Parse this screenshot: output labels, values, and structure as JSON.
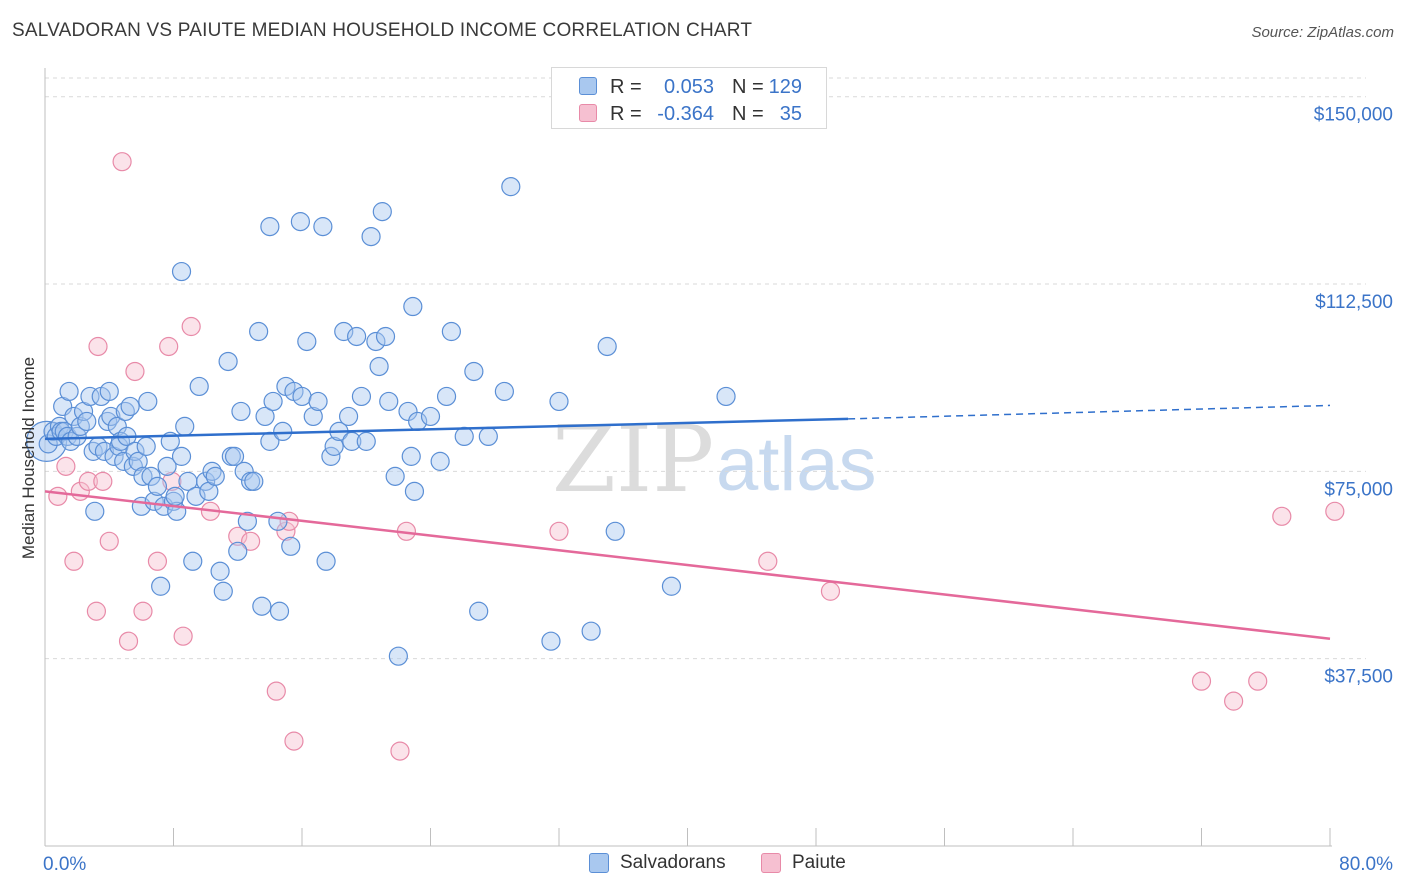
{
  "title": "SALVADORAN VS PAIUTE MEDIAN HOUSEHOLD INCOME CORRELATION CHART",
  "source": "Source: ZipAtlas.com",
  "watermark": {
    "zip": "ZIP",
    "atlas": "atlas"
  },
  "colors": {
    "blue_fill": "#a9c8ef",
    "blue_stroke": "#5b8fd6",
    "blue_line": "#2f6fcc",
    "pink_fill": "#f6c0d1",
    "pink_stroke": "#e88aa8",
    "pink_line": "#e4699a",
    "tick_text": "#3b74c8",
    "grid": "#d9d9d9"
  },
  "legend_top": {
    "rows": [
      {
        "r_label": "R =",
        "r_value": "0.053",
        "n_label": "N =",
        "n_value": "129"
      },
      {
        "r_label": "R =",
        "r_value": "-0.364",
        "n_label": "N =",
        "n_value": "35"
      }
    ]
  },
  "legend_bottom": {
    "items": [
      "Salvadorans",
      "Paiute"
    ]
  },
  "chart_data": {
    "type": "scatter",
    "title": "SALVADORAN VS PAIUTE MEDIAN HOUSEHOLD INCOME CORRELATION CHART",
    "xlabel": "",
    "ylabel": "Median Household Income",
    "xlim": [
      0,
      80
    ],
    "ylim": [
      0,
      153750
    ],
    "x_tick_labels": [
      "0.0%",
      "80.0%"
    ],
    "y_ticks": [
      37500,
      75000,
      112500,
      150000
    ],
    "y_tick_labels": [
      "$37,500",
      "$75,000",
      "$112,500",
      "$150,000"
    ],
    "grid": true,
    "legend_position": "top-center",
    "series": [
      {
        "name": "Salvadorans",
        "r": 0.053,
        "n": 129,
        "trend": {
          "x0": 0,
          "y0": 81500,
          "x1": 50,
          "y1": 85500,
          "x_dashed_end": 80,
          "y_dashed_end": 88200
        },
        "points": [
          [
            0.2,
            80.5
          ],
          [
            0.5,
            83
          ],
          [
            0.7,
            82
          ],
          [
            0.9,
            84
          ],
          [
            1.0,
            83
          ],
          [
            1.1,
            88
          ],
          [
            1.2,
            83
          ],
          [
            1.4,
            82
          ],
          [
            1.5,
            91
          ],
          [
            1.6,
            81
          ],
          [
            1.8,
            86
          ],
          [
            2.0,
            82
          ],
          [
            2.2,
            84
          ],
          [
            2.4,
            87
          ],
          [
            2.6,
            85
          ],
          [
            2.8,
            90
          ],
          [
            3.0,
            79
          ],
          [
            3.1,
            67
          ],
          [
            3.3,
            80
          ],
          [
            3.5,
            90
          ],
          [
            3.7,
            79
          ],
          [
            3.9,
            85
          ],
          [
            4.0,
            91
          ],
          [
            4.1,
            86
          ],
          [
            4.3,
            78
          ],
          [
            4.5,
            84
          ],
          [
            4.6,
            80
          ],
          [
            4.7,
            81
          ],
          [
            4.9,
            77
          ],
          [
            5.0,
            87
          ],
          [
            5.1,
            82
          ],
          [
            5.3,
            88
          ],
          [
            5.5,
            76
          ],
          [
            5.6,
            79
          ],
          [
            5.8,
            77
          ],
          [
            6.0,
            68
          ],
          [
            6.1,
            74
          ],
          [
            6.3,
            80
          ],
          [
            6.4,
            89
          ],
          [
            6.6,
            74
          ],
          [
            6.8,
            69
          ],
          [
            7.0,
            72
          ],
          [
            7.2,
            52
          ],
          [
            7.4,
            68
          ],
          [
            7.6,
            76
          ],
          [
            7.8,
            81
          ],
          [
            8.0,
            69
          ],
          [
            8.2,
            67
          ],
          [
            8.5,
            78
          ],
          [
            8.7,
            84
          ],
          [
            8.9,
            73
          ],
          [
            9.2,
            57
          ],
          [
            9.4,
            70
          ],
          [
            9.6,
            92
          ],
          [
            10.0,
            73
          ],
          [
            10.2,
            71
          ],
          [
            10.4,
            75
          ],
          [
            10.6,
            74
          ],
          [
            10.9,
            55
          ],
          [
            11.1,
            51
          ],
          [
            11.4,
            97
          ],
          [
            11.6,
            78
          ],
          [
            11.8,
            78
          ],
          [
            12.0,
            59
          ],
          [
            12.2,
            87
          ],
          [
            12.4,
            75
          ],
          [
            12.6,
            65
          ],
          [
            12.8,
            73
          ],
          [
            13.0,
            73
          ],
          [
            13.3,
            103
          ],
          [
            13.5,
            48
          ],
          [
            13.7,
            86
          ],
          [
            14.0,
            81
          ],
          [
            14.2,
            89
          ],
          [
            14.5,
            65
          ],
          [
            14.6,
            47
          ],
          [
            14.8,
            83
          ],
          [
            15.0,
            92
          ],
          [
            15.3,
            60
          ],
          [
            15.5,
            91
          ],
          [
            15.9,
            125
          ],
          [
            16.0,
            90
          ],
          [
            16.3,
            101
          ],
          [
            16.7,
            86
          ],
          [
            17.0,
            89
          ],
          [
            17.3,
            124
          ],
          [
            17.5,
            57
          ],
          [
            17.8,
            78
          ],
          [
            18.0,
            80
          ],
          [
            18.3,
            83
          ],
          [
            18.6,
            103
          ],
          [
            18.9,
            86
          ],
          [
            19.1,
            81
          ],
          [
            19.4,
            102
          ],
          [
            19.7,
            90
          ],
          [
            20.0,
            81
          ],
          [
            20.3,
            122
          ],
          [
            20.6,
            101
          ],
          [
            20.8,
            96
          ],
          [
            21.0,
            127
          ],
          [
            21.2,
            102
          ],
          [
            21.4,
            89
          ],
          [
            21.8,
            74
          ],
          [
            22.0,
            38
          ],
          [
            22.6,
            87
          ],
          [
            22.8,
            78
          ],
          [
            22.9,
            108
          ],
          [
            23.0,
            71
          ],
          [
            23.2,
            85
          ],
          [
            24.0,
            86
          ],
          [
            24.6,
            77
          ],
          [
            25.0,
            90
          ],
          [
            25.3,
            103
          ],
          [
            26.1,
            82
          ],
          [
            26.7,
            95
          ],
          [
            27.0,
            47
          ],
          [
            27.6,
            82
          ],
          [
            28.6,
            91
          ],
          [
            29.0,
            132
          ],
          [
            31.5,
            41
          ],
          [
            32.0,
            89
          ],
          [
            34.0,
            43
          ],
          [
            35.0,
            100
          ],
          [
            35.5,
            63
          ],
          [
            39.0,
            52
          ],
          [
            42.4,
            90
          ],
          [
            8.5,
            115
          ],
          [
            14.0,
            124
          ],
          [
            8.1,
            70
          ]
        ]
      },
      {
        "name": "Paiute",
        "r": -0.364,
        "n": 35,
        "trend": {
          "x0": 0,
          "y0": 71000,
          "x1": 80,
          "y1": 41500
        },
        "points": [
          [
            0.8,
            70
          ],
          [
            1.3,
            76
          ],
          [
            1.8,
            57
          ],
          [
            2.2,
            71
          ],
          [
            2.7,
            73
          ],
          [
            3.2,
            47
          ],
          [
            3.3,
            100
          ],
          [
            3.6,
            73
          ],
          [
            4.0,
            61
          ],
          [
            4.8,
            137
          ],
          [
            5.2,
            41
          ],
          [
            5.6,
            95
          ],
          [
            6.1,
            47
          ],
          [
            7.0,
            57
          ],
          [
            7.7,
            100
          ],
          [
            7.9,
            73
          ],
          [
            8.6,
            42
          ],
          [
            9.1,
            104
          ],
          [
            10.3,
            67
          ],
          [
            12.0,
            62
          ],
          [
            12.8,
            61
          ],
          [
            14.4,
            31
          ],
          [
            15.0,
            63
          ],
          [
            15.2,
            65
          ],
          [
            15.5,
            21
          ],
          [
            22.1,
            19
          ],
          [
            22.5,
            63
          ],
          [
            32.0,
            63
          ],
          [
            45.0,
            57
          ],
          [
            48.9,
            51
          ],
          [
            72.0,
            33
          ],
          [
            74.0,
            29
          ],
          [
            75.5,
            33
          ],
          [
            77.0,
            66
          ],
          [
            80.3,
            67
          ]
        ]
      }
    ]
  }
}
